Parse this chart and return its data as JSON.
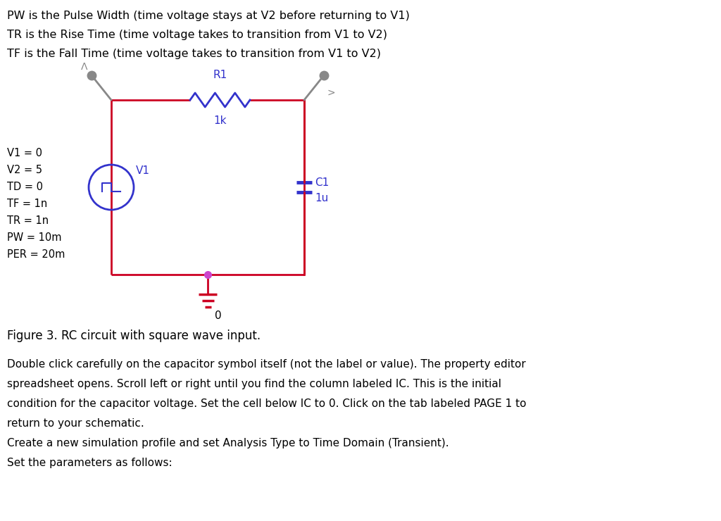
{
  "bg_color": "#ffffff",
  "text_color": "#000000",
  "wire_color": "#cc0022",
  "component_color": "#3333cc",
  "ground_color": "#cc0022",
  "pink_dot_color": "#cc44cc",
  "gray_probe": "#888888",
  "header_lines": [
    "PW is the Pulse Width (time voltage stays at V2 before returning to V1)",
    "TR is the Rise Time (time voltage takes to transition from V1 to V2)",
    "TF is the Fall Time (time voltage takes to transition from V1 to V2)"
  ],
  "source_params": [
    "V1 = 0",
    "V2 = 5",
    "TD = 0",
    "TF = 1n",
    "TR = 1n",
    "PW = 10m",
    "PER = 20m"
  ],
  "r_label": "R1",
  "r_value": "1k",
  "c_label": "C1",
  "c_value": "1u",
  "v_label": "V1",
  "gnd_label": "0",
  "figure_caption": "Figure 3. RC circuit with square wave input.",
  "body_text": [
    "Double click carefully on the capacitor symbol itself (not the label or value). The property editor",
    "spreadsheet opens. Scroll left or right until you find the column labeled IC. This is the initial",
    "condition for the capacitor voltage. Set the cell below IC to 0. Click on the tab labeled PAGE 1 to",
    "return to your schematic.",
    "Create a new simulation profile and set Analysis Type to Time Domain (Transient).",
    "Set the parameters as follows:"
  ]
}
